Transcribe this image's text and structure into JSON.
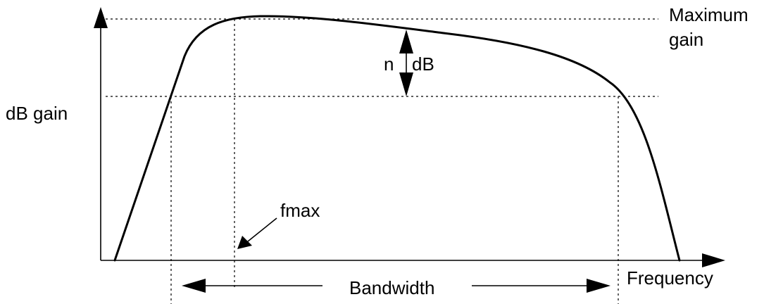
{
  "diagram": {
    "labels": {
      "maximum_gain_line1": "Maximum",
      "maximum_gain_line2": "gain",
      "db_gain": "dB gain",
      "n": "n",
      "db": "dB",
      "fmax": "fmax",
      "bandwidth": "Bandwidth",
      "frequency": "Frequency"
    },
    "colors": {
      "stroke": "#000000",
      "background": "#ffffff"
    }
  }
}
